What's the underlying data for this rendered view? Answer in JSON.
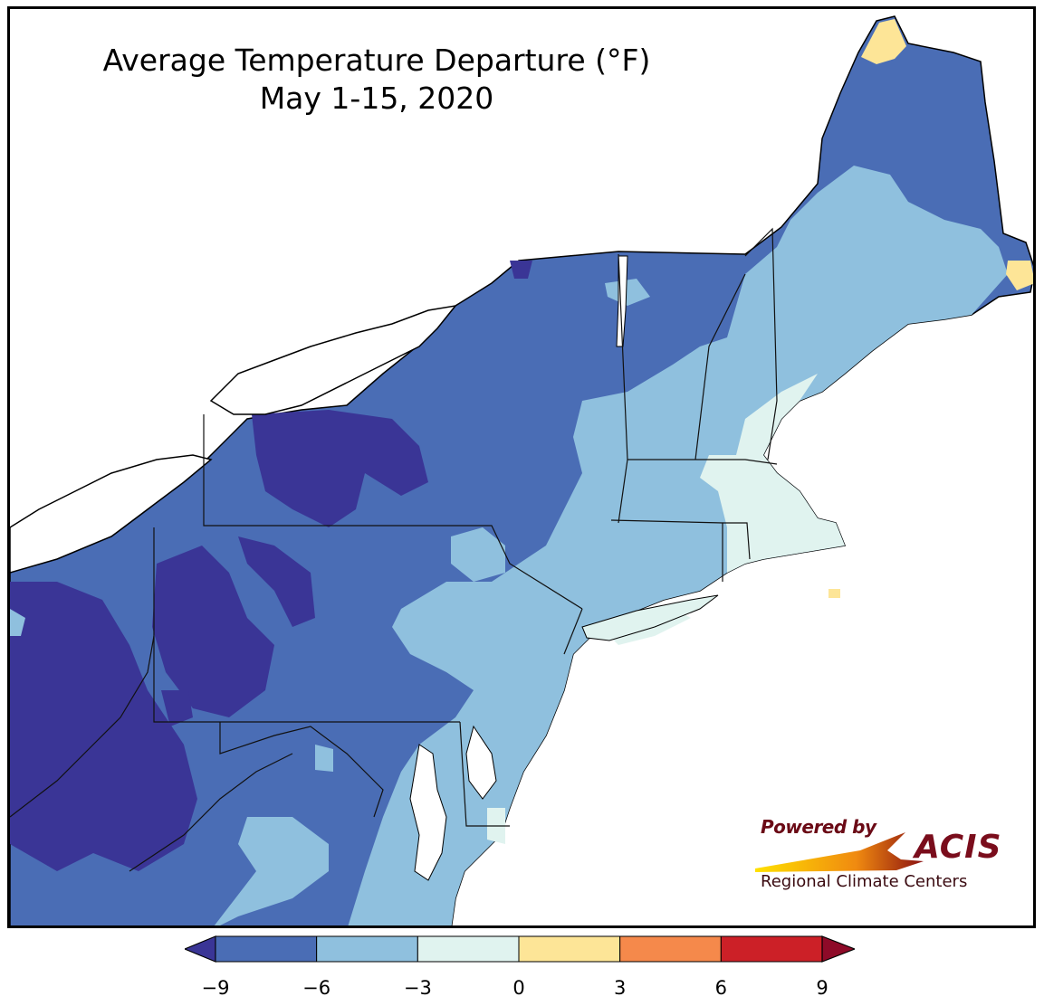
{
  "map": {
    "title_line1": "Average Temperature Departure (°F)",
    "title_line2": "May 1-15, 2020",
    "region": "Northeast United States",
    "colors": {
      "below_m9": "#3a3596",
      "m9_m6": "#4a6db5",
      "m6_m3": "#8fc0de",
      "m3_0": "#e0f3ef",
      "0_3": "#fde597",
      "3_6": "#f5894b",
      "6_9": "#cc2027",
      "above_9": "#8e0a28"
    }
  },
  "colorbar": {
    "ticks": [
      "−9",
      "−6",
      "−3",
      "0",
      "3",
      "6",
      "9"
    ],
    "bins": [
      {
        "from": -9,
        "to": -6,
        "color": "#4a6db5"
      },
      {
        "from": -6,
        "to": -3,
        "color": "#8fc0de"
      },
      {
        "from": -3,
        "to": 0,
        "color": "#e0f3ef"
      },
      {
        "from": 0,
        "to": 3,
        "color": "#fde597"
      },
      {
        "from": 3,
        "to": 6,
        "color": "#f5894b"
      },
      {
        "from": 6,
        "to": 9,
        "color": "#cc2027"
      }
    ],
    "under_color": "#3a3596",
    "over_color": "#8e0a28"
  },
  "logo": {
    "powered": "Powered by",
    "name": "ACIS",
    "subtitle": "Regional Climate Centers"
  }
}
